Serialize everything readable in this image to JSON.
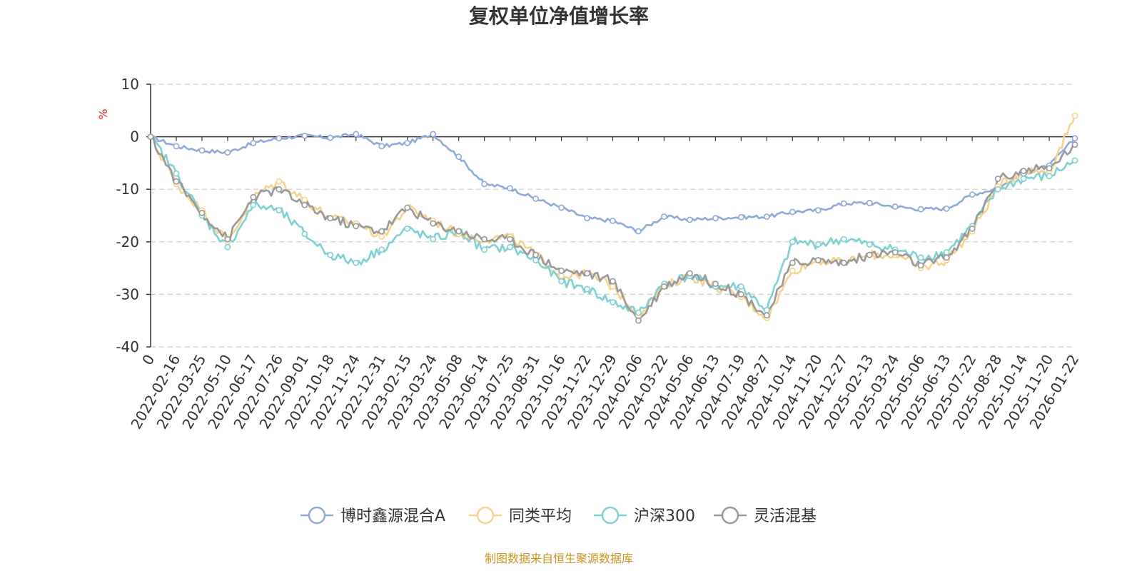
{
  "chart_data": {
    "type": "line",
    "title": "复权单位净值增长率",
    "ylabel": "%",
    "ylim": [
      -40,
      10
    ],
    "yticks": [
      10,
      0,
      -10,
      -20,
      -30,
      -40
    ],
    "grid": true,
    "legend_position": "bottom",
    "source_note": "制图数据来自恒生聚源数据库",
    "x_tick_labels": [
      "0",
      "2022-02-16",
      "2022-03-25",
      "2022-05-10",
      "2022-06-17",
      "2022-07-26",
      "2022-09-01",
      "2022-10-18",
      "2022-11-24",
      "2022-12-31",
      "2023-02-15",
      "2023-03-24",
      "2023-05-08",
      "2023-06-14",
      "2023-07-25",
      "2023-08-31",
      "2023-10-16",
      "2023-11-22",
      "2023-12-29",
      "2024-02-06",
      "2024-03-22",
      "2024-05-06",
      "2024-06-13",
      "2024-07-19",
      "2024-08-27",
      "2024-10-14",
      "2024-11-20",
      "2024-12-27",
      "2025-02-13",
      "2025-03-24",
      "2025-05-06",
      "2025-06-13",
      "2025-07-22",
      "2025-08-28",
      "2025-10-14",
      "2025-11-20",
      "2026-01-22"
    ],
    "series": [
      {
        "name": "博时鑫源混合A",
        "color": "#8fa9d8",
        "values": [
          0,
          -1.8,
          -2.6,
          -3.0,
          -1.2,
          -0.3,
          0.2,
          -0.2,
          0.5,
          -1.8,
          -1.2,
          0.5,
          -3.8,
          -9.0,
          -9.8,
          -11.8,
          -13.5,
          -15.5,
          -16.0,
          -18.0,
          -15.2,
          -15.8,
          -15.5,
          -15.3,
          -15.2,
          -14.3,
          -14.0,
          -12.7,
          -12.6,
          -13.3,
          -13.8,
          -13.7,
          -11.0,
          -9.8,
          -7.0,
          -5.5,
          -0.3
        ]
      },
      {
        "name": "同类平均",
        "color": "#f7d48e",
        "values": [
          0,
          -9.0,
          -14.0,
          -20.0,
          -11.5,
          -8.5,
          -12.0,
          -15.5,
          -16.5,
          -19.0,
          -13.5,
          -16.0,
          -18.5,
          -19.5,
          -19.0,
          -22.5,
          -26.5,
          -26.0,
          -28.5,
          -34.0,
          -28.5,
          -26.5,
          -28.5,
          -30.5,
          -34.5,
          -25.5,
          -23.5,
          -24.0,
          -22.5,
          -22.5,
          -25.0,
          -23.5,
          -18.0,
          -9.5,
          -6.5,
          -6.5,
          4.0
        ]
      },
      {
        "name": "沪深300",
        "color": "#7fd1d3",
        "values": [
          0,
          -7.0,
          -15.0,
          -21.0,
          -13.0,
          -14.0,
          -18.5,
          -22.5,
          -24.0,
          -21.5,
          -17.5,
          -19.5,
          -18.0,
          -21.5,
          -21.0,
          -23.5,
          -27.5,
          -29.0,
          -31.5,
          -33.5,
          -28.0,
          -26.5,
          -28.5,
          -28.5,
          -33.0,
          -20.0,
          -20.5,
          -19.5,
          -20.5,
          -21.5,
          -23.0,
          -22.0,
          -17.0,
          -10.0,
          -8.0,
          -7.5,
          -4.5
        ]
      },
      {
        "name": "灵活混基",
        "color": "#999999",
        "values": [
          0,
          -8.5,
          -14.5,
          -19.5,
          -11.5,
          -10.0,
          -13.0,
          -15.5,
          -17.0,
          -18.0,
          -13.5,
          -16.5,
          -18.0,
          -19.5,
          -19.5,
          -22.5,
          -25.5,
          -26.0,
          -27.5,
          -35.0,
          -28.5,
          -26.0,
          -28.0,
          -30.0,
          -34.0,
          -24.0,
          -23.5,
          -24.0,
          -22.5,
          -22.0,
          -24.5,
          -23.0,
          -17.5,
          -8.0,
          -6.5,
          -6.0,
          -1.5
        ]
      }
    ]
  }
}
